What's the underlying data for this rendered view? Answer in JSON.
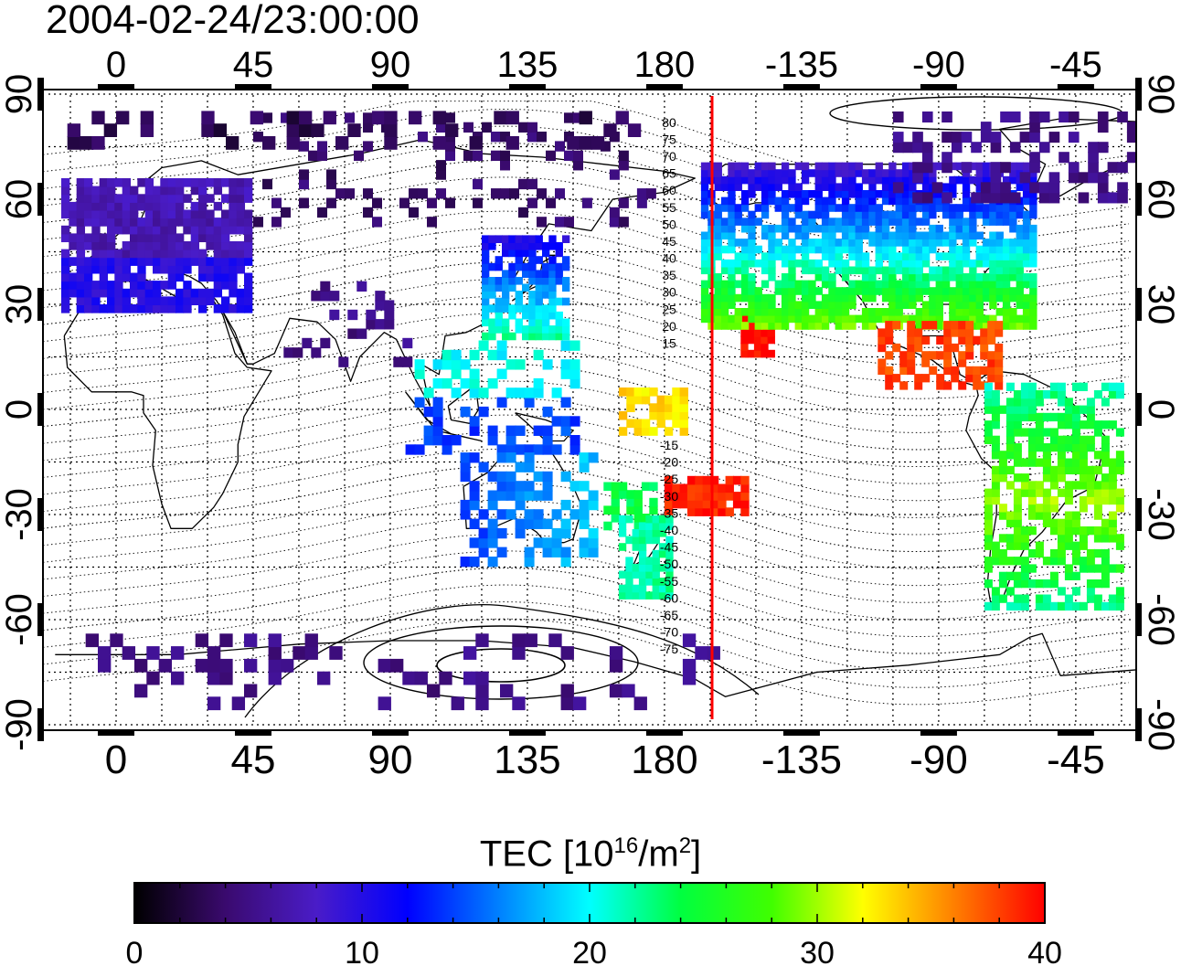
{
  "map": {
    "timestamp": "2004-02-24/23:00:00",
    "longitude_ticks": [
      "0",
      "45",
      "90",
      "135",
      "180",
      "-135",
      "-90",
      "-45"
    ],
    "latitude_ticks": [
      "90",
      "60",
      "30",
      "0",
      "-30",
      "-60",
      "-90"
    ],
    "contour_labels": [
      "80",
      "75",
      "70",
      "65",
      "60",
      "55",
      "50",
      "45",
      "40",
      "35",
      "30",
      "25",
      "20",
      "15",
      "-15",
      "-20",
      "-25",
      "-30",
      "-35",
      "-40",
      "-45",
      "-50",
      "-55",
      "-60",
      "-65",
      "-70",
      "-75"
    ],
    "terminator_line_color": "#ff0000"
  },
  "colorbar": {
    "title_main": "TEC  [10",
    "title_sup1": "16",
    "title_mid": "/m",
    "title_sup2": "2",
    "title_end": "]",
    "tick_labels": [
      "0",
      "10",
      "20",
      "30",
      "40"
    ],
    "min": 0,
    "max": 40,
    "colors": [
      "#000000",
      "#3a0a6e",
      "#4a1cc8",
      "#0000ff",
      "#0080ff",
      "#00ffff",
      "#00ff40",
      "#40ff00",
      "#ffff00",
      "#ff8000",
      "#ff0000"
    ]
  }
}
